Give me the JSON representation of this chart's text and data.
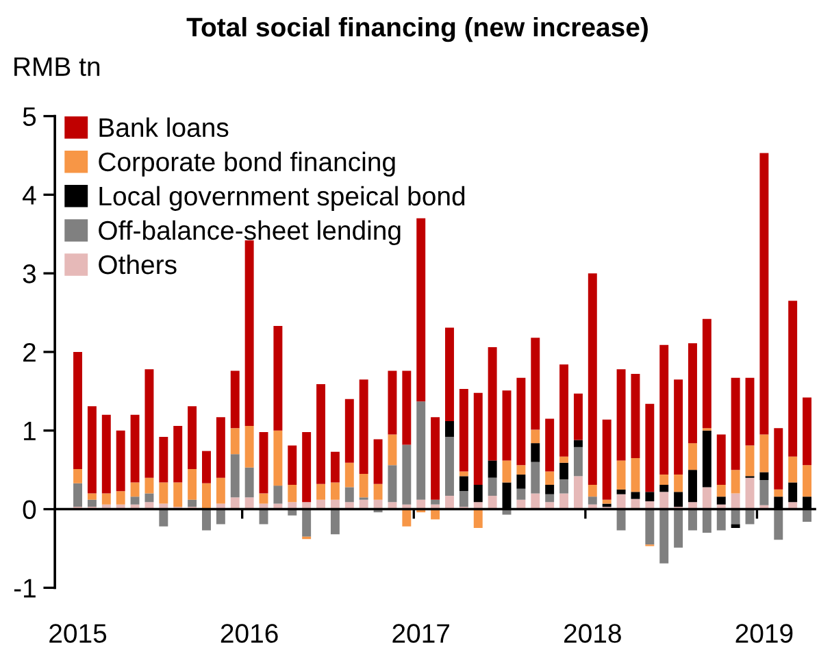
{
  "chart_data": {
    "type": "bar",
    "stacked": true,
    "title": "Total social financing (new increase)",
    "ylabel": "RMB tn",
    "categories": [
      "2015",
      null,
      null,
      null,
      null,
      null,
      null,
      null,
      null,
      null,
      null,
      null,
      "2016",
      null,
      null,
      null,
      null,
      null,
      null,
      null,
      null,
      null,
      null,
      null,
      "2017",
      null,
      null,
      null,
      null,
      null,
      null,
      null,
      null,
      null,
      null,
      null,
      "2018",
      null,
      null,
      null,
      null,
      null,
      null,
      null,
      null,
      null,
      null,
      null,
      "2019",
      null,
      null,
      null
    ],
    "series": [
      {
        "name": "Others",
        "color": "#e6b9b8",
        "values": [
          0.03,
          0.03,
          0.06,
          0.06,
          0.06,
          0.09,
          0.07,
          0.03,
          0.03,
          0,
          0.07,
          0.15,
          0.15,
          0.07,
          0.07,
          0.09,
          0.09,
          0.12,
          0.12,
          0.09,
          0.12,
          0.12,
          0.09,
          0.06,
          0.12,
          0.06,
          0.17,
          0.03,
          0.09,
          0.17,
          0,
          0.12,
          0.2,
          0.09,
          0.2,
          0.42,
          0.06,
          0.03,
          0.19,
          0.13,
          0.1,
          0.22,
          0.03,
          0.09,
          0.28,
          0.06,
          0.2,
          0.4,
          0.05,
          0,
          0.09,
          0
        ]
      },
      {
        "name": "Off-balance-sheet lending",
        "color": "#808080",
        "values": [
          0.3,
          0.09,
          0,
          0,
          0.1,
          0.11,
          -0.22,
          0,
          0.09,
          -0.27,
          -0.19,
          0.55,
          0.38,
          -0.19,
          0.23,
          -0.08,
          -0.35,
          0,
          -0.32,
          0.19,
          0.03,
          -0.04,
          0.47,
          0.76,
          1.25,
          0.06,
          0.75,
          0.2,
          0,
          0.23,
          -0.07,
          0.14,
          0.4,
          0.1,
          0.18,
          0.37,
          0.1,
          0,
          -0.27,
          0,
          -0.45,
          -0.69,
          -0.49,
          -0.27,
          -0.3,
          -0.27,
          -0.19,
          -0.19,
          0.32,
          -0.39,
          0,
          -0.16
        ]
      },
      {
        "name": "Local government speical bond",
        "color": "#000000",
        "values": [
          0,
          0,
          0,
          0,
          0,
          0,
          0,
          0,
          0,
          0,
          0,
          0,
          0,
          0,
          0,
          0,
          0,
          0,
          0,
          0,
          0,
          0,
          0,
          0,
          0,
          0,
          0.2,
          0.19,
          0.22,
          0.22,
          0.34,
          0.18,
          0.24,
          0.12,
          0.21,
          0.09,
          0,
          0.04,
          0.06,
          0.09,
          0.12,
          0.09,
          0.19,
          0.41,
          0.72,
          0.1,
          -0.05,
          0.02,
          0.1,
          0.16,
          0.25,
          0.16
        ]
      },
      {
        "name": "Corporate bond financing",
        "color": "#f79646",
        "values": [
          0.18,
          0.08,
          0.14,
          0.17,
          0.18,
          0.2,
          0.27,
          0.31,
          0.39,
          0.33,
          0.33,
          0.33,
          0.53,
          0.13,
          0.7,
          0.22,
          -0.03,
          0.2,
          0.22,
          0.31,
          0.3,
          0.2,
          0.39,
          -0.22,
          -0.04,
          -0.13,
          0,
          0.06,
          -0.24,
          0,
          0.28,
          0.12,
          0.17,
          0.17,
          0.08,
          0,
          0.15,
          0.05,
          0.37,
          0.43,
          -0.02,
          0.13,
          0.22,
          0.34,
          0.03,
          0.15,
          0.3,
          0.39,
          0.48,
          0.09,
          0.33,
          0.4
        ]
      },
      {
        "name": "Bank loans",
        "color": "#c00000",
        "values": [
          1.49,
          1.11,
          1.0,
          0.77,
          0.86,
          1.38,
          0.58,
          0.72,
          0.8,
          0.41,
          0.77,
          0.73,
          2.36,
          0.78,
          1.33,
          0.5,
          0.89,
          1.27,
          0.39,
          0.81,
          1.2,
          0.57,
          0.81,
          0.94,
          2.33,
          1.05,
          1.19,
          1.05,
          1.17,
          1.44,
          0.89,
          1.11,
          1.17,
          0.67,
          1.17,
          0.59,
          2.69,
          1.02,
          1.16,
          1.07,
          1.12,
          1.65,
          1.21,
          1.27,
          1.39,
          0.64,
          1.17,
          0.86,
          3.58,
          0.78,
          1.98,
          0.86
        ]
      }
    ],
    "ylim": [
      -1,
      5
    ],
    "yticks": [
      -1,
      0,
      1,
      2,
      3,
      4,
      5
    ],
    "legend": "top left"
  }
}
